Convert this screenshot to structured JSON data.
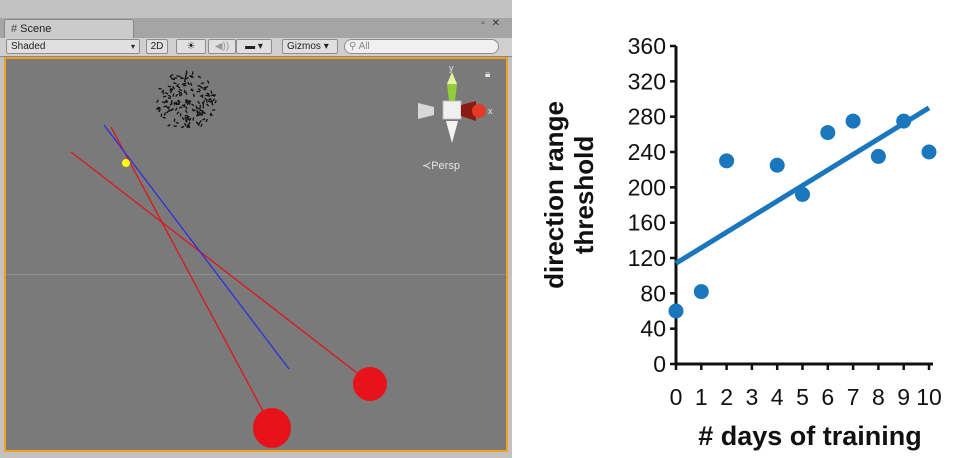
{
  "scene_window": {
    "tab_label": "Scene",
    "window_controls": "▫ ✕",
    "toolbar": {
      "shading_mode": "Shaded",
      "mode_2d": "2D",
      "light_glyph": "☀",
      "audio_glyph": "◀))",
      "image_glyph": "▬",
      "gizmos_label": "Gizmos",
      "search_placeholder": "All"
    },
    "viewport": {
      "projection_label": "Persp",
      "gizmo_axes": [
        "y",
        "x"
      ]
    },
    "colors": {
      "viewport_bg": "#7a7a7a",
      "selection_border": "#f0a020",
      "red_line": "#e0161c",
      "blue_line": "#2e2ee0",
      "target_dot": "#ffff00"
    },
    "icons": [
      "scene-tab-icon",
      "lock-icon",
      "sun-icon",
      "speaker-icon",
      "image-icon",
      "search-icon",
      "dropdown-arrow-icon"
    ]
  },
  "chart_data": {
    "type": "scatter",
    "xlabel": "# days of training",
    "ylabel": "direction range threshold",
    "ylabel_lines": [
      "direction range",
      "threshold"
    ],
    "xticks": [
      0,
      1,
      2,
      3,
      4,
      5,
      6,
      7,
      8,
      9,
      10
    ],
    "yticks": [
      0,
      40,
      80,
      120,
      160,
      200,
      240,
      280,
      320,
      360
    ],
    "xlim": [
      0,
      10
    ],
    "ylim": [
      0,
      360
    ],
    "grid": false,
    "color": "#1a77bd",
    "points": [
      {
        "x": 0,
        "y": 60
      },
      {
        "x": 1,
        "y": 82
      },
      {
        "x": 2,
        "y": 230
      },
      {
        "x": 4,
        "y": 225
      },
      {
        "x": 5,
        "y": 192
      },
      {
        "x": 6,
        "y": 262
      },
      {
        "x": 7,
        "y": 275
      },
      {
        "x": 8,
        "y": 235
      },
      {
        "x": 9,
        "y": 275
      },
      {
        "x": 10,
        "y": 240
      }
    ],
    "trendline": {
      "x0": 0,
      "y0": 114,
      "x1": 10,
      "y1": 290
    }
  }
}
